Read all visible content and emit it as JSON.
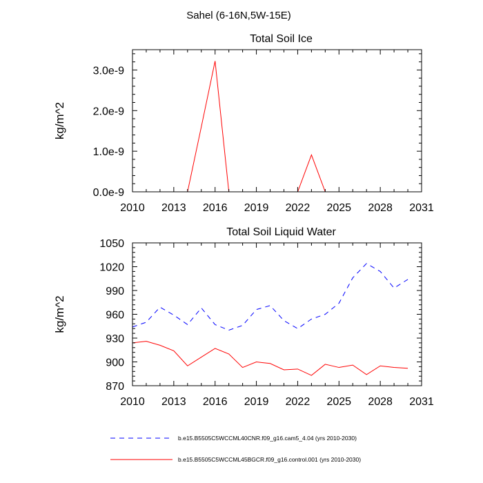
{
  "suptitle": "Sahel (6-16N,5W-15E)",
  "chart_data": [
    {
      "type": "line",
      "title": "Total Soil Ice",
      "xlabel": "",
      "ylabel": "kg/m^2",
      "xlim": [
        2010,
        2031
      ],
      "ylim": [
        0,
        3.5e-09
      ],
      "x_ticks": [
        2010,
        2013,
        2016,
        2019,
        2022,
        2025,
        2028,
        2031
      ],
      "x_tick_labels": [
        "2010",
        "2013",
        "2016",
        "2019",
        "2022",
        "2025",
        "2028",
        "2031"
      ],
      "y_ticks": [
        0,
        1e-09,
        2e-09,
        3e-09
      ],
      "y_tick_labels": [
        "0.0e-9",
        "1.0e-9",
        "2.0e-9",
        "3.0e-9"
      ],
      "grid": false,
      "series": [
        {
          "name": "b.e15.B5505C5WCCML40CNR.f09_g16.cam5_4.04 (yrs 2010-2030)",
          "color": "#0000ff",
          "dash": "dashed",
          "x": [
            2010,
            2011,
            2012,
            2013,
            2014,
            2015,
            2016,
            2017,
            2018,
            2019,
            2020,
            2021,
            2022,
            2023,
            2024,
            2025,
            2026,
            2027,
            2028,
            2029,
            2030
          ],
          "y": [
            0,
            0,
            0,
            0,
            0,
            0,
            0,
            0,
            0,
            0,
            0,
            0,
            0,
            0,
            0,
            0,
            0,
            0,
            0,
            0,
            0
          ]
        },
        {
          "name": "b.e15.B5505C5WCCML45BGCR.f09_g16.control.001 (yrs 2010-2030)",
          "color": "#ff0000",
          "dash": "solid",
          "x": [
            2010,
            2011,
            2012,
            2013,
            2014,
            2015,
            2016,
            2017,
            2018,
            2019,
            2020,
            2021,
            2022,
            2023,
            2024,
            2025,
            2026,
            2027,
            2028,
            2029,
            2030
          ],
          "y": [
            0,
            0,
            0,
            0,
            0,
            1.6e-09,
            3.22e-09,
            0,
            0,
            0,
            0,
            0,
            0,
            9.1e-10,
            0,
            0,
            0,
            0,
            0,
            0,
            0
          ]
        }
      ]
    },
    {
      "type": "line",
      "title": "Total Soil Liquid Water",
      "xlabel": "",
      "ylabel": "kg/m^2",
      "xlim": [
        2010,
        2031
      ],
      "ylim": [
        870,
        1050
      ],
      "x_ticks": [
        2010,
        2013,
        2016,
        2019,
        2022,
        2025,
        2028,
        2031
      ],
      "x_tick_labels": [
        "2010",
        "2013",
        "2016",
        "2019",
        "2022",
        "2025",
        "2028",
        "2031"
      ],
      "y_ticks": [
        870,
        900,
        930,
        960,
        990,
        1020,
        1050
      ],
      "y_tick_labels": [
        "870",
        "900",
        "930",
        "960",
        "990",
        "1020",
        "1050"
      ],
      "grid": false,
      "series": [
        {
          "name": "b.e15.B5505C5WCCML40CNR.f09_g16.cam5_4.04 (yrs 2010-2030)",
          "color": "#0000ff",
          "dash": "dashed",
          "x": [
            2010,
            2011,
            2012,
            2013,
            2014,
            2015,
            2016,
            2017,
            2018,
            2019,
            2020,
            2021,
            2022,
            2023,
            2024,
            2025,
            2026,
            2027,
            2028,
            2029,
            2030
          ],
          "y": [
            944,
            950,
            969,
            959,
            947,
            968,
            947,
            940,
            946,
            966,
            971,
            952,
            942,
            954,
            960,
            974,
            1006,
            1024,
            1014,
            993,
            1004
          ]
        },
        {
          "name": "b.e15.B5505C5WCCML45BGCR.f09_g16.control.001 (yrs 2010-2030)",
          "color": "#ff0000",
          "dash": "solid",
          "x": [
            2010,
            2011,
            2012,
            2013,
            2014,
            2015,
            2016,
            2017,
            2018,
            2019,
            2020,
            2021,
            2022,
            2023,
            2024,
            2025,
            2026,
            2027,
            2028,
            2029,
            2030
          ],
          "y": [
            924,
            926,
            921,
            914,
            895,
            906,
            917,
            910,
            893,
            900,
            898,
            890,
            891,
            883,
            897,
            893,
            896,
            884,
            895,
            893,
            892
          ]
        }
      ]
    }
  ],
  "legend": {
    "placement": "bottom",
    "entries": [
      {
        "label": "b.e15.B5505C5WCCML40CNR.f09_g16.cam5_4.04 (yrs 2010-2030)",
        "color": "#0000ff",
        "dash": "dashed"
      },
      {
        "label": "b.e15.B5505C5WCCML45BGCR.f09_g16.control.001 (yrs 2010-2030)",
        "color": "#ff0000",
        "dash": "solid"
      }
    ]
  }
}
